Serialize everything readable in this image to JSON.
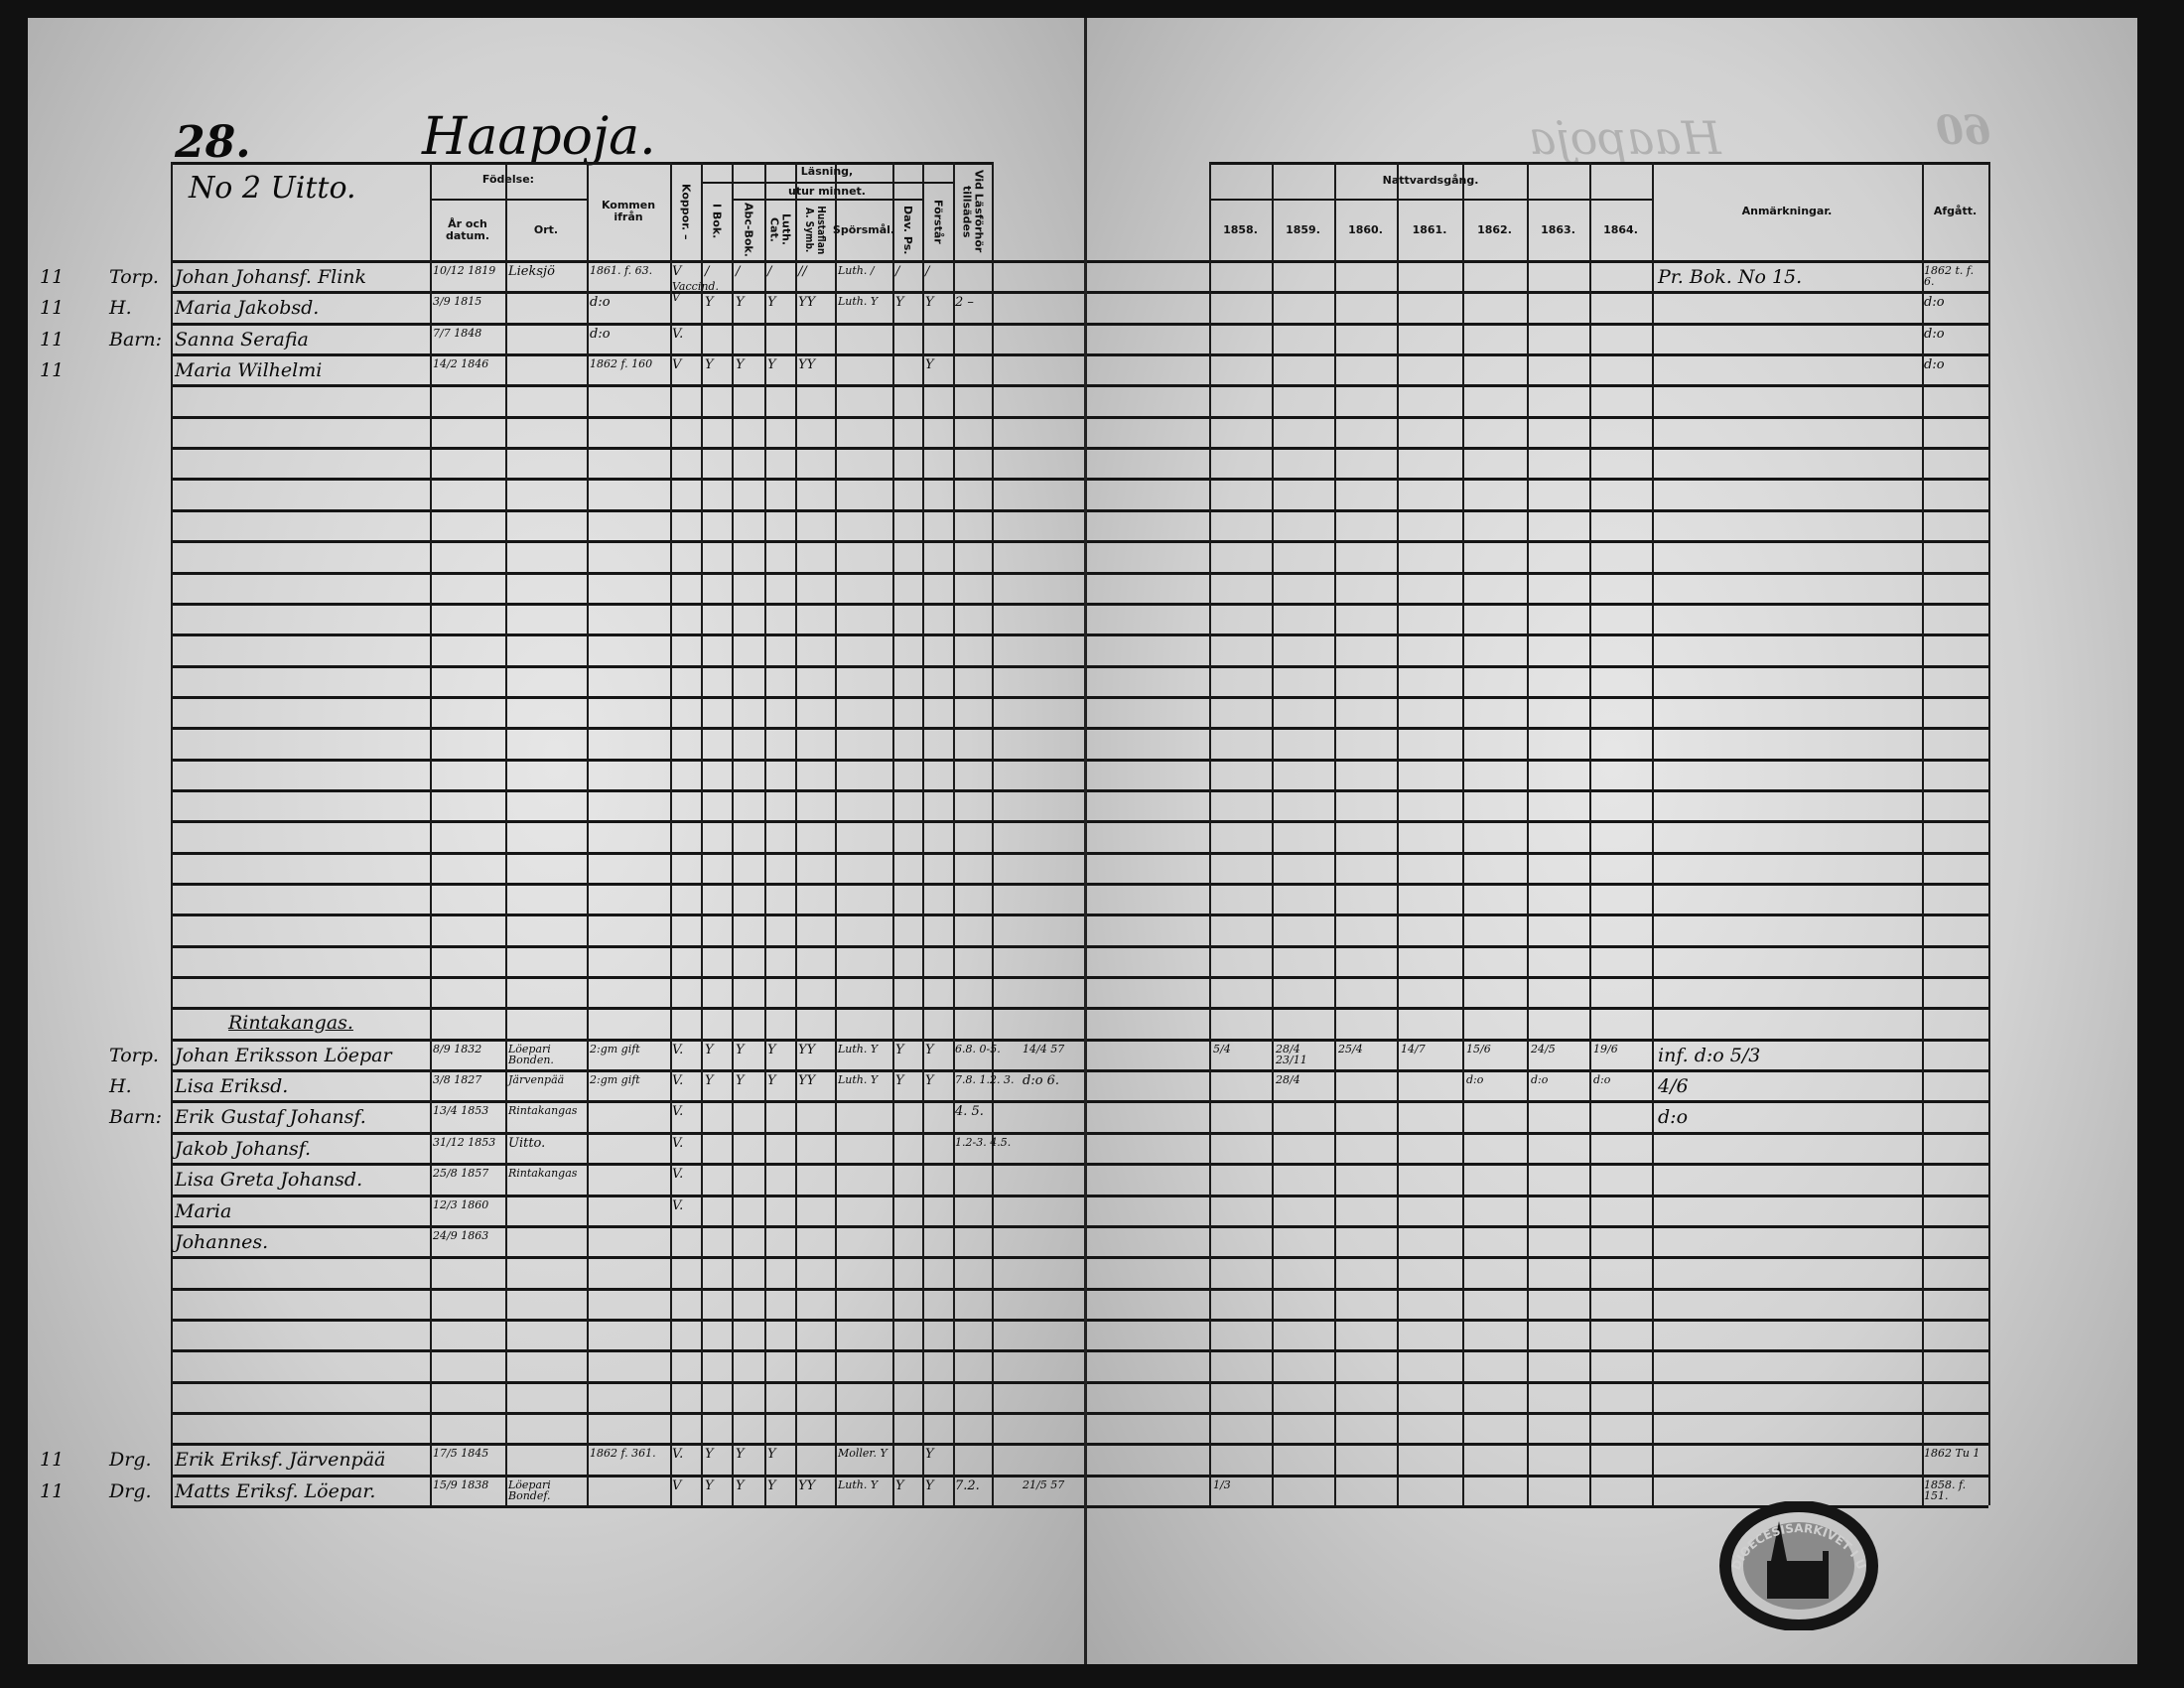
{
  "page_left": {
    "page_number": "28.",
    "village": "Haapoja.",
    "farm": "No 2 Uitto."
  },
  "page_right": {
    "ghost_title": "Haapoja",
    "page_number": "60"
  },
  "headers": {
    "fodelse": "Födelse:",
    "ar_och_datum": "År och datum.",
    "ort": "Ort.",
    "kommen_ifran": "Kommen ifrån",
    "koppor": "Koppor. –",
    "lasning": "Läsning,",
    "utur_minnet": "utur minnet.",
    "i_bok": "I Bok.",
    "abc_bok": "Abc-Bok.",
    "luth_cat": "Luth. Cat.",
    "hustaflan": "Hustaflan A. Symb.",
    "sporsmal": "Spörsmål.",
    "dav_ps": "Dav. Ps.",
    "forstar": "Förstår",
    "vid_lasforhor": "Vid Läsförhör tillsädes",
    "nattvardsgang": "Nattvardsgång.",
    "years": [
      "1858.",
      "1859.",
      "1860.",
      "1861.",
      "1862.",
      "1863.",
      "1864."
    ],
    "anmarkningar": "Anmärkningar.",
    "afgatt": "Afgått."
  },
  "entries": [
    {
      "row": 0,
      "mark": "11",
      "role": "Torp.",
      "name": "Johan Johansf. Flink",
      "birth": "10/12 1819",
      "place": "Lieksjö",
      "from": "1861. f. 63.",
      "koppor": "V",
      "i_bok": "/",
      "abc": "/",
      "luth": "/",
      "hust": "//",
      "spors": "Luth. /",
      "dav": "/",
      "forstar": "/",
      "remarks": "Pr. Bok. No 15.",
      "afgatt": "1862 t. f. 6."
    },
    {
      "row": 1,
      "mark": "11",
      "role": "H.",
      "name": "Maria Jakobsd.",
      "birth": "3/9 1815",
      "from": "d:o",
      "koppor": "Vaccind. V",
      "i_bok": "Y",
      "abc": "Y",
      "luth": "Y",
      "hust": "YY",
      "spors": "Luth. Y",
      "dav": "Y",
      "forstar": "Y",
      "vid": "2 –",
      "afgatt": "d:o"
    },
    {
      "row": 2,
      "mark": "11",
      "role": "Barn:",
      "name": "Sanna Serafia",
      "birth": "7/7 1848",
      "from": "d:o",
      "koppor": "V.",
      "afgatt": "d:o"
    },
    {
      "row": 3,
      "mark": "11",
      "name": "Maria Wilhelmi",
      "birth": "14/2 1846",
      "from": "1862 f. 160",
      "koppor": "V",
      "i_bok": "Y",
      "abc": "Y",
      "luth": "Y",
      "hust": "YY",
      "forstar": "Y",
      "afgatt": "d:o"
    },
    {
      "row": 24,
      "heading": "Rintakangas."
    },
    {
      "row": 25,
      "role": "Torp.",
      "name": "Johan Eriksson Löepar",
      "birth": "8/9 1832",
      "place": "Löepari Bonden.",
      "from": "2:gm gift",
      "koppor": "V.",
      "i_bok": "Y",
      "abc": "Y",
      "luth": "Y",
      "hust": "YY",
      "spors": "Luth. Y",
      "dav": "Y",
      "forstar": "Y",
      "vid": "6.8. 0-5.",
      "extra": "14/4 57",
      "communion": [
        "5/4",
        "28/4 23/11",
        "25/4",
        "14/7",
        "15/6",
        "24/5",
        "19/6"
      ],
      "remarks": "inf. d:o 5/3"
    },
    {
      "row": 26,
      "role": "H.",
      "name": "Lisa Eriksd.",
      "birth": "3/8 1827",
      "place": "Järvenpää",
      "from": "2:gm gift",
      "koppor": "V.",
      "i_bok": "Y",
      "abc": "Y",
      "luth": "Y",
      "hust": "YY",
      "spors": "Luth. Y",
      "dav": "Y",
      "forstar": "Y",
      "vid": "7.8. 1.2. 3.",
      "extra": "d:o 6.",
      "communion": [
        "",
        "28/4",
        "",
        "",
        "d:o",
        "d:o",
        "d:o"
      ],
      "remarks": "4/6"
    },
    {
      "row": 27,
      "role": "Barn:",
      "name": "Erik Gustaf Johansf.",
      "birth": "13/4 1853",
      "place": "Rintakangas",
      "koppor": "V.",
      "vid": "4. 5.",
      "remarks": "d:o"
    },
    {
      "row": 28,
      "name": "Jakob Johansf.",
      "birth": "31/12 1853",
      "place": "Uitto.",
      "koppor": "V.",
      "vid": "1.2-3. 4.5."
    },
    {
      "row": 29,
      "name": "Lisa Greta Johansd.",
      "birth": "25/8 1857",
      "place": "Rintakangas",
      "koppor": "V."
    },
    {
      "row": 30,
      "name": "Maria",
      "birth": "12/3 1860",
      "koppor": "V."
    },
    {
      "row": 31,
      "name": "Johannes.",
      "birth": "24/9 1863"
    },
    {
      "row": 38,
      "mark": "11",
      "role": "Drg.",
      "name": "Erik Eriksf. Järvenpää",
      "birth": "17/5 1845",
      "from": "1862 f. 361.",
      "koppor": "V.",
      "i_bok": "Y",
      "abc": "Y",
      "luth": "Y",
      "spors": "Moller. Y",
      "forstar": "Y",
      "afgatt": "1862 Tu 1"
    },
    {
      "row": 39,
      "mark": "11",
      "role": "Drg.",
      "name": "Matts Eriksf. Löepar.",
      "birth": "15/9 1838",
      "place": "Löepari Bondef.",
      "koppor": "V",
      "i_bok": "Y",
      "abc": "Y",
      "luth": "Y",
      "hust": "YY",
      "spors": "Luth. Y",
      "dav": "Y",
      "forstar": "Y",
      "vid": "7.2.",
      "extra": "21/5 57",
      "communion": [
        "1/3",
        "",
        "",
        "",
        "",
        "",
        ""
      ],
      "afgatt": "1858. f. 151."
    }
  ],
  "stamp": {
    "text": "DIOECESISARKIVET I ULEÅBORG",
    "color": "#151515"
  },
  "colors": {
    "paper": "#d8d8d8",
    "ink": "#0a0a0a",
    "frame": "#111111"
  }
}
